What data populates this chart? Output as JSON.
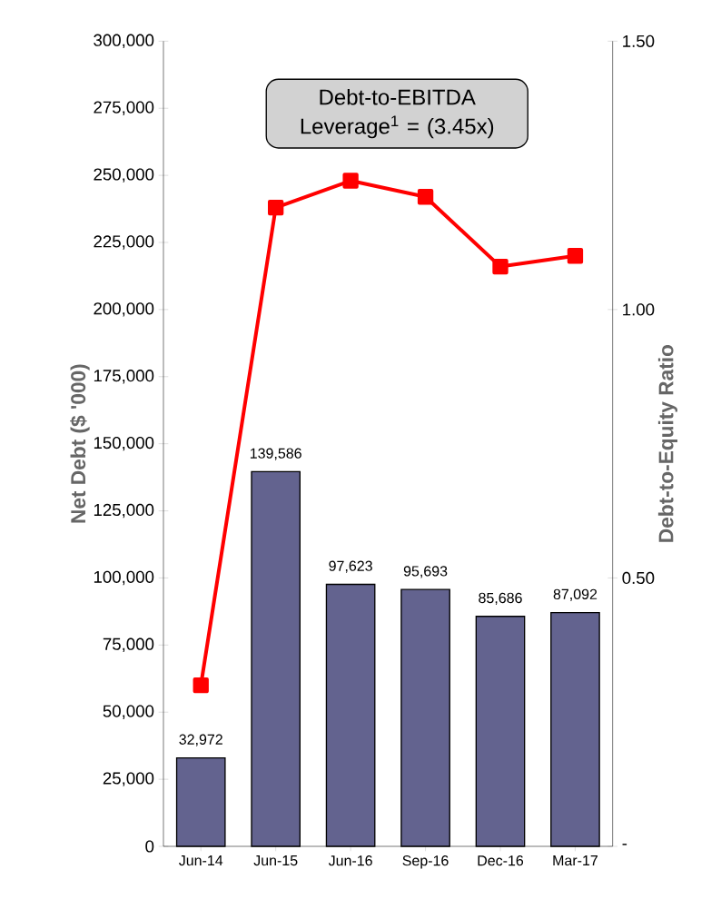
{
  "chart_data": {
    "type": "bar",
    "categories": [
      "Jun-14",
      "Jun-15",
      "Jun-16",
      "Sep-16",
      "Dec-16",
      "Mar-17"
    ],
    "ylabel": "Net Debt ($ '000)",
    "y2label": "Debt-to-Equity Ratio",
    "ylim": [
      0,
      300000
    ],
    "yticks": [
      {
        "value": 0,
        "label": "0"
      },
      {
        "value": 25000,
        "label": "25,000"
      },
      {
        "value": 50000,
        "label": "50,000"
      },
      {
        "value": 75000,
        "label": "75,000"
      },
      {
        "value": 100000,
        "label": "100,000"
      },
      {
        "value": 125000,
        "label": "125,000"
      },
      {
        "value": 150000,
        "label": "150,000"
      },
      {
        "value": 175000,
        "label": "175,000"
      },
      {
        "value": 200000,
        "label": "200,000"
      },
      {
        "value": 225000,
        "label": "225,000"
      },
      {
        "value": 250000,
        "label": "250,000"
      },
      {
        "value": 275000,
        "label": "275,000"
      },
      {
        "value": 300000,
        "label": "300,000"
      }
    ],
    "y2lim": [
      0,
      1.5
    ],
    "y2ticks": [
      {
        "value": 0,
        "label": "-"
      },
      {
        "value": 0.5,
        "label": "0.50"
      },
      {
        "value": 1.0,
        "label": "1.00"
      },
      {
        "value": 1.5,
        "label": "1.50"
      }
    ],
    "series": [
      {
        "color": "#63638f",
        "values": [
          32972,
          139586,
          97623,
          95693,
          85686,
          87092
        ],
        "value_labels": [
          "32,972",
          "139,586",
          "97,623",
          "95,693",
          "85,686",
          "87,092"
        ]
      },
      {
        "type": "line",
        "axis": "y2",
        "color": "#ff0000",
        "values": [
          0.3,
          1.19,
          1.24,
          1.21,
          1.08,
          1.1
        ]
      }
    ],
    "marker": "square",
    "line_style": "solid",
    "grid": false,
    "legend": false,
    "annotations": [
      "Debt-to-EBITDA Leverage$^{1}$ = (3.45x)"
    ]
  }
}
